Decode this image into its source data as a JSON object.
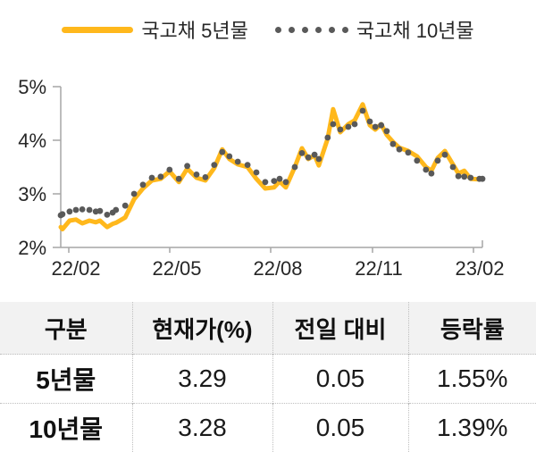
{
  "legend": {
    "item_5yr": "국고채 5년물",
    "item_10yr": "국고채 10년물"
  },
  "colors": {
    "bond5_line": "#FFB81C",
    "bond10_dots": "#595959",
    "axis": "#A6A6A6",
    "table_header_bg": "#F2F2F2",
    "grid_divider": "#BFBFBF"
  },
  "chart_data": {
    "type": "line",
    "title": "",
    "xlabel": "",
    "ylabel": "",
    "ylim": [
      2,
      5
    ],
    "y_unit": "%",
    "grid": false,
    "legend_position": "top",
    "x_tick_labels": [
      "22/02",
      "22/05",
      "22/08",
      "22/11",
      "23/02"
    ],
    "y_tick_labels": [
      "5%",
      "4%",
      "3%",
      "2%"
    ],
    "x": [
      0,
      0.004,
      0.021,
      0.036,
      0.051,
      0.068,
      0.083,
      0.093,
      0.11,
      0.123,
      0.131,
      0.153,
      0.174,
      0.195,
      0.216,
      0.237,
      0.258,
      0.28,
      0.3,
      0.322,
      0.343,
      0.364,
      0.383,
      0.4,
      0.42,
      0.443,
      0.464,
      0.485,
      0.506,
      0.519,
      0.534,
      0.555,
      0.572,
      0.587,
      0.602,
      0.612,
      0.633,
      0.646,
      0.663,
      0.682,
      0.697,
      0.716,
      0.733,
      0.746,
      0.76,
      0.773,
      0.788,
      0.803,
      0.824,
      0.845,
      0.866,
      0.879,
      0.894,
      0.911,
      0.93,
      0.943,
      0.957,
      0.972,
      0.993,
      1
    ],
    "series": [
      {
        "name": "국고채 5년물",
        "style": "solid",
        "color": "#FFB81C",
        "values": [
          2.38,
          2.34,
          2.5,
          2.52,
          2.45,
          2.5,
          2.47,
          2.5,
          2.38,
          2.44,
          2.46,
          2.56,
          2.9,
          3.1,
          3.25,
          3.28,
          3.42,
          3.22,
          3.47,
          3.3,
          3.25,
          3.48,
          3.83,
          3.65,
          3.55,
          3.5,
          3.28,
          3.1,
          3.12,
          3.23,
          3.12,
          3.5,
          3.85,
          3.65,
          3.72,
          3.53,
          4.03,
          4.58,
          4.15,
          4.3,
          4.37,
          4.67,
          4.28,
          4.2,
          4.3,
          4.1,
          3.97,
          3.86,
          3.8,
          3.7,
          3.5,
          3.43,
          3.67,
          3.8,
          3.55,
          3.38,
          3.43,
          3.28,
          3.27,
          3.29
        ]
      },
      {
        "name": "국고채 10년물",
        "style": "dotted",
        "color": "#595959",
        "values": [
          2.6,
          2.62,
          2.67,
          2.7,
          2.71,
          2.7,
          2.67,
          2.68,
          2.61,
          2.65,
          2.7,
          2.78,
          3.0,
          3.17,
          3.3,
          3.32,
          3.45,
          3.28,
          3.52,
          3.36,
          3.31,
          3.54,
          3.78,
          3.7,
          3.6,
          3.54,
          3.4,
          3.22,
          3.24,
          3.28,
          3.22,
          3.5,
          3.76,
          3.68,
          3.73,
          3.65,
          4.05,
          4.3,
          4.2,
          4.25,
          4.3,
          4.55,
          4.35,
          4.25,
          4.28,
          4.17,
          3.93,
          3.83,
          3.77,
          3.62,
          3.45,
          3.38,
          3.62,
          3.73,
          3.5,
          3.33,
          3.32,
          3.3,
          3.28,
          3.28
        ]
      }
    ]
  },
  "table": {
    "header": [
      "구분",
      "현재가(%)",
      "전일 대비",
      "등락률"
    ],
    "rows": [
      {
        "label": "5년물",
        "cells": [
          "3.29",
          "0.05",
          "1.55%"
        ]
      },
      {
        "label": "10년물",
        "cells": [
          "3.28",
          "0.05",
          "1.39%"
        ]
      }
    ]
  }
}
